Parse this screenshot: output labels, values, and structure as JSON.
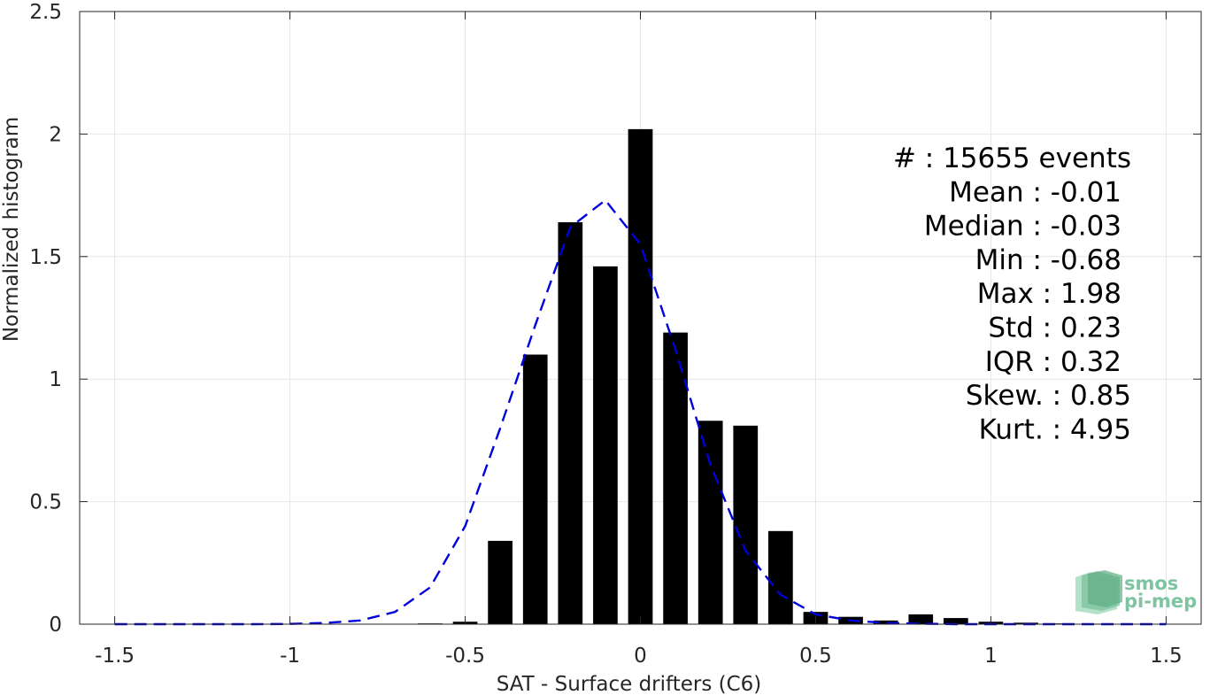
{
  "chart_data": {
    "type": "bar",
    "xlabel": "SAT - Surface drifters (C6)",
    "ylabel": "Normalized histogram",
    "xlim": [
      -1.6,
      1.6
    ],
    "ylim": [
      0,
      2.5
    ],
    "xticks": [
      -1.5,
      -1,
      -0.5,
      0,
      0.5,
      1,
      1.5
    ],
    "xtick_labels": [
      "-1.5",
      "-1",
      "-0.5",
      "0",
      "0.5",
      "1",
      "1.5"
    ],
    "yticks": [
      0,
      0.5,
      1,
      1.5,
      2,
      2.5
    ],
    "ytick_labels": [
      "0",
      "0.5",
      "1",
      "1.5",
      "2",
      "2.5"
    ],
    "grid": true,
    "bar_width": 0.07,
    "bars": {
      "x": [
        -0.6,
        -0.5,
        -0.4,
        -0.3,
        -0.2,
        -0.1,
        0.0,
        0.1,
        0.2,
        0.3,
        0.4,
        0.5,
        0.6,
        0.7,
        0.8,
        0.9,
        1.0,
        1.1,
        1.2,
        1.3,
        1.4,
        1.5
      ],
      "values": [
        0.003,
        0.01,
        0.34,
        1.1,
        1.64,
        1.46,
        2.02,
        1.19,
        0.83,
        0.81,
        0.38,
        0.05,
        0.03,
        0.015,
        0.04,
        0.025,
        0.01,
        0.006,
        0.003,
        0.002,
        0.001,
        0.001
      ],
      "color": "#000000"
    },
    "fit_curve": {
      "style": "dashed",
      "color": "#0000dd",
      "x": [
        -1.5,
        -1.4,
        -1.3,
        -1.2,
        -1.1,
        -1.0,
        -0.9,
        -0.8,
        -0.7,
        -0.6,
        -0.5,
        -0.4,
        -0.3,
        -0.2,
        -0.1,
        0.0,
        0.1,
        0.2,
        0.3,
        0.4,
        0.5,
        0.6,
        0.7,
        0.8,
        0.9,
        1.0,
        1.1,
        1.2,
        1.3,
        1.4,
        1.5
      ],
      "y": [
        0,
        0,
        0,
        0,
        0,
        0.001,
        0.005,
        0.015,
        0.05,
        0.15,
        0.4,
        0.8,
        1.22,
        1.62,
        1.73,
        1.55,
        1.12,
        0.65,
        0.3,
        0.12,
        0.04,
        0.015,
        0.005,
        0.002,
        0,
        0,
        0,
        0,
        0,
        0,
        0
      ]
    }
  },
  "stats": [
    {
      "label": "#  ",
      "value": "15655 events",
      "indent": 0
    },
    {
      "label": "Mean",
      "value": "-0.01",
      "indent": 1
    },
    {
      "label": "Median",
      "value": "-0.03",
      "indent": 1
    },
    {
      "label": "Min",
      "value": "-0.68",
      "indent": 1
    },
    {
      "label": "Max",
      "value": "1.98",
      "indent": 1
    },
    {
      "label": "Std",
      "value": "0.23",
      "indent": 1
    },
    {
      "label": "IQR",
      "value": "0.32",
      "indent": 1
    },
    {
      "label": "Skew.",
      "value": "0.85",
      "indent": 0
    },
    {
      "label": "Kurt.",
      "value": "4.95",
      "indent": 0
    }
  ],
  "logo": {
    "line1": "smos",
    "line2": "pi-mep",
    "color": "#7fc4a0"
  }
}
